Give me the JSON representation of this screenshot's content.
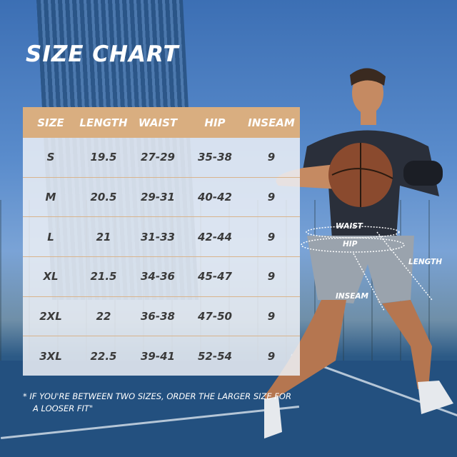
{
  "title": "SIZE CHART",
  "table": {
    "headers": [
      "SIZE",
      "LENGTH",
      "WAIST",
      "HIP",
      "INSEAM"
    ],
    "rows": [
      [
        "S",
        "19.5",
        "27-29",
        "35-38",
        "9"
      ],
      [
        "M",
        "20.5",
        "29-31",
        "40-42",
        "9"
      ],
      [
        "L",
        "21",
        "31-33",
        "42-44",
        "9"
      ],
      [
        "XL",
        "21.5",
        "34-36",
        "45-47",
        "9"
      ],
      [
        "2XL",
        "22",
        "36-38",
        "47-50",
        "9"
      ],
      [
        "3XL",
        "22.5",
        "39-41",
        "52-54",
        "9"
      ]
    ]
  },
  "note": {
    "line1": "* IF YOU'RE BETWEEN TWO SIZES, ORDER THE LARGER SIZE FOR",
    "line2": "A LOOSER FIT\""
  },
  "measure_labels": {
    "waist": "WAIST",
    "hip": "HIP",
    "length": "LENGTH",
    "inseam": "INSEAM"
  },
  "colors": {
    "header": "#d9ae80",
    "row": "#eceff6",
    "text": "#3a3a3a"
  }
}
